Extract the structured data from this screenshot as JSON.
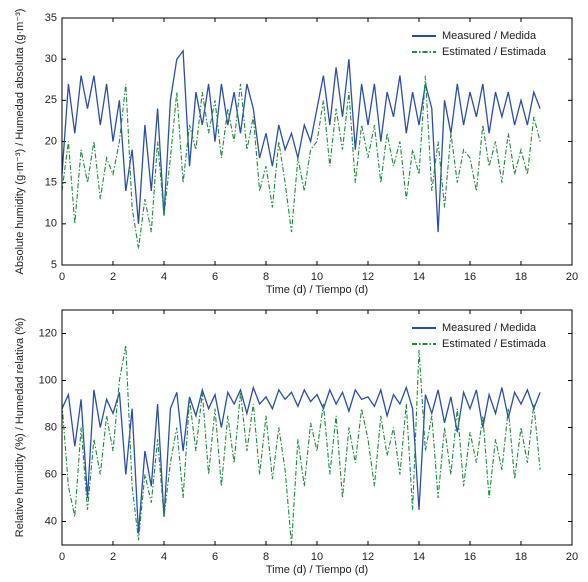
{
  "chart_data": [
    {
      "type": "line",
      "xlabel": "Time (d) / Tiempo (d)",
      "ylabel": "Absolute humidity (g·m⁻³) / Humedad absoluta (g·m⁻³)",
      "x": [
        0,
        0.25,
        0.5,
        0.75,
        1,
        1.25,
        1.5,
        1.75,
        2,
        2.25,
        2.5,
        2.75,
        3,
        3.25,
        3.5,
        3.75,
        4,
        4.25,
        4.5,
        4.75,
        5,
        5.25,
        5.5,
        5.75,
        6,
        6.25,
        6.5,
        6.75,
        7,
        7.25,
        7.5,
        7.75,
        8,
        8.25,
        8.5,
        8.75,
        9,
        9.25,
        9.5,
        9.75,
        10,
        10.25,
        10.5,
        10.75,
        11,
        11.25,
        11.5,
        11.75,
        12,
        12.25,
        12.5,
        12.75,
        13,
        13.25,
        13.5,
        13.75,
        14,
        14.25,
        14.5,
        14.75,
        15,
        15.25,
        15.5,
        15.75,
        16,
        16.25,
        16.5,
        16.75,
        17,
        17.25,
        17.5,
        17.75,
        18,
        18.25,
        18.5,
        18.75
      ],
      "series": [
        {
          "name": "Measured / Medida",
          "color": "#2b4fa3",
          "style": "solid",
          "values": [
            16,
            27,
            21,
            28,
            24,
            28,
            22,
            27,
            20,
            25,
            14,
            19,
            10,
            22,
            14,
            24,
            11,
            25,
            30,
            31,
            17,
            26,
            22,
            27,
            20,
            27,
            22,
            26,
            21,
            27,
            24,
            18,
            21,
            17,
            22,
            19,
            21,
            18,
            22,
            20,
            24,
            28,
            22,
            29,
            23,
            30,
            19,
            27,
            22,
            27,
            20,
            26,
            23,
            28,
            21,
            26,
            22,
            27,
            24,
            9,
            25,
            21,
            27,
            22,
            26,
            23,
            27,
            21,
            26,
            23,
            26,
            22,
            25,
            22,
            26,
            24
          ]
        },
        {
          "name": "Estimated / Estimada",
          "color": "#1f8b3b",
          "style": "dashdot",
          "values": [
            14,
            20,
            10,
            19,
            15,
            20,
            13,
            18,
            16,
            20,
            27,
            12,
            7,
            13,
            9,
            20,
            11,
            18,
            26,
            15,
            22,
            19,
            26,
            21,
            25,
            18,
            24,
            20,
            27,
            19,
            23,
            14,
            17,
            12,
            20,
            15,
            9,
            18,
            14,
            19,
            20,
            25,
            17,
            24,
            19,
            26,
            15,
            22,
            18,
            22,
            15,
            21,
            17,
            20,
            13,
            19,
            16,
            28,
            14,
            20,
            12,
            21,
            15,
            19,
            18,
            14,
            22,
            17,
            20,
            15,
            21,
            16,
            19,
            16,
            23,
            20
          ]
        }
      ],
      "xlim": [
        0,
        20
      ],
      "xticks": [
        0,
        2,
        4,
        6,
        8,
        10,
        12,
        14,
        16,
        18,
        20
      ],
      "ylim": [
        5,
        35
      ],
      "yticks": [
        5,
        10,
        15,
        20,
        25,
        30,
        35
      ],
      "legend": "upper right"
    },
    {
      "type": "line",
      "xlabel": "Time (d) / Tiempo (d)",
      "ylabel": "Relative humidity (%) / Humedad relativa (%)",
      "x": [
        0,
        0.25,
        0.5,
        0.75,
        1,
        1.25,
        1.5,
        1.75,
        2,
        2.25,
        2.5,
        2.75,
        3,
        3.25,
        3.5,
        3.75,
        4,
        4.25,
        4.5,
        4.75,
        5,
        5.25,
        5.5,
        5.75,
        6,
        6.25,
        6.5,
        6.75,
        7,
        7.25,
        7.5,
        7.75,
        8,
        8.25,
        8.5,
        8.75,
        9,
        9.25,
        9.5,
        9.75,
        10,
        10.25,
        10.5,
        10.75,
        11,
        11.25,
        11.5,
        11.75,
        12,
        12.25,
        12.5,
        12.75,
        13,
        13.25,
        13.5,
        13.75,
        14,
        14.25,
        14.5,
        14.75,
        15,
        15.25,
        15.5,
        15.75,
        16,
        16.25,
        16.5,
        16.75,
        17,
        17.25,
        17.5,
        17.75,
        18,
        18.25,
        18.5,
        18.75
      ],
      "series": [
        {
          "name": "Measured / Medida",
          "color": "#2b4fa3",
          "style": "solid",
          "values": [
            88,
            94,
            72,
            92,
            50,
            96,
            80,
            92,
            86,
            95,
            60,
            88,
            35,
            70,
            55,
            90,
            42,
            88,
            95,
            70,
            93,
            85,
            96,
            88,
            94,
            80,
            95,
            90,
            96,
            86,
            97,
            90,
            93,
            88,
            96,
            92,
            95,
            89,
            96,
            91,
            94,
            88,
            96,
            90,
            95,
            87,
            96,
            92,
            93,
            89,
            96,
            85,
            94,
            90,
            97,
            88,
            45,
            94,
            86,
            96,
            82,
            93,
            78,
            95,
            88,
            96,
            80,
            94,
            86,
            97,
            84,
            95,
            90,
            96,
            88,
            95
          ]
        },
        {
          "name": "Estimated / Estimada",
          "color": "#1f8b3b",
          "style": "dashdot",
          "values": [
            90,
            55,
            42,
            80,
            45,
            75,
            60,
            85,
            70,
            100,
            115,
            55,
            32,
            60,
            48,
            75,
            42,
            65,
            80,
            50,
            92,
            70,
            95,
            60,
            88,
            55,
            85,
            65,
            95,
            70,
            90,
            60,
            85,
            58,
            80,
            62,
            30,
            75,
            55,
            82,
            70,
            90,
            60,
            85,
            50,
            80,
            65,
            88,
            75,
            55,
            85,
            68,
            80,
            60,
            90,
            45,
            113,
            70,
            85,
            50,
            80,
            60,
            88,
            55,
            78,
            65,
            85,
            50,
            75,
            62,
            88,
            58,
            80,
            65,
            90,
            62
          ]
        }
      ],
      "xlim": [
        0,
        20
      ],
      "xticks": [
        0,
        2,
        4,
        6,
        8,
        10,
        12,
        14,
        16,
        18,
        20
      ],
      "ylim": [
        30,
        130
      ],
      "yticks": [
        40,
        60,
        80,
        100,
        120
      ],
      "legend": "upper right"
    }
  ]
}
